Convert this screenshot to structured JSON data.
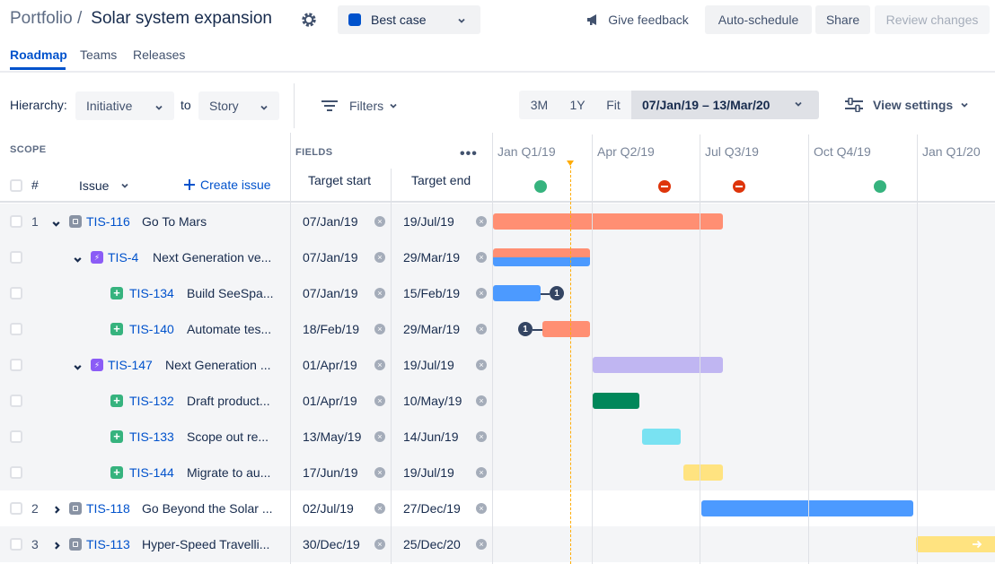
{
  "header": {
    "breadcrumb": "Portfolio /",
    "title": "Solar system expansion",
    "scenario": "Best case",
    "scenario_color": "#0052CC",
    "feedback": "Give feedback",
    "auto_schedule": "Auto-schedule",
    "share": "Share",
    "review": "Review changes"
  },
  "tabs": [
    "Roadmap",
    "Teams",
    "Releases"
  ],
  "toolbar": {
    "hierarchy_label": "Hierarchy:",
    "hierarchy_from": "Initiative",
    "to_label": "to",
    "hierarchy_to": "Story",
    "filters": "Filters",
    "seg": [
      "3M",
      "1Y",
      "Fit"
    ],
    "date_range": "07/Jan/19 – 13/Mar/20",
    "view_settings": "View settings"
  },
  "grid": {
    "scope_label": "SCOPE",
    "fields_label": "FIELDS",
    "hash": "#",
    "issue_col": "Issue",
    "create_issue": "Create issue",
    "target_start": "Target start",
    "target_end": "Target end",
    "quarters": [
      "Jan Q1/19",
      "Apr Q2/19",
      "Jul Q3/19",
      "Oct Q4/19",
      "Jan Q1/20"
    ]
  },
  "rows": [
    {
      "num": "1",
      "key": "TIS-116",
      "title": "Go To Mars",
      "start": "07/Jan/19",
      "end": "19/Jul/19"
    },
    {
      "num": "",
      "key": "TIS-4",
      "title": "Next Generation ve...",
      "start": "07/Jan/19",
      "end": "29/Mar/19"
    },
    {
      "num": "",
      "key": "TIS-134",
      "title": "Build SeeSpa...",
      "start": "07/Jan/19",
      "end": "15/Feb/19",
      "badge": "1"
    },
    {
      "num": "",
      "key": "TIS-140",
      "title": "Automate tes...",
      "start": "18/Feb/19",
      "end": "29/Mar/19",
      "badge": "1"
    },
    {
      "num": "",
      "key": "TIS-147",
      "title": "Next Generation ...",
      "start": "01/Apr/19",
      "end": "19/Jul/19"
    },
    {
      "num": "",
      "key": "TIS-132",
      "title": "Draft product...",
      "start": "01/Apr/19",
      "end": "10/May/19"
    },
    {
      "num": "",
      "key": "TIS-133",
      "title": "Scope out re...",
      "start": "13/May/19",
      "end": "14/Jun/19"
    },
    {
      "num": "",
      "key": "TIS-144",
      "title": "Migrate to au...",
      "start": "17/Jun/19",
      "end": "19/Jul/19"
    },
    {
      "num": "2",
      "key": "TIS-118",
      "title": "Go Beyond the Solar ...",
      "start": "02/Jul/19",
      "end": "27/Dec/19"
    },
    {
      "num": "3",
      "key": "TIS-113",
      "title": "Hyper-Speed Travelli...",
      "start": "30/Dec/19",
      "end": "25/Dec/20"
    }
  ],
  "colors": {
    "coral": "#FF8F73",
    "blue": "#4C9AFF",
    "lavender": "#C0B6F2",
    "green": "#00875A",
    "cyan": "#79E2F2",
    "yellow": "#FFE380"
  }
}
